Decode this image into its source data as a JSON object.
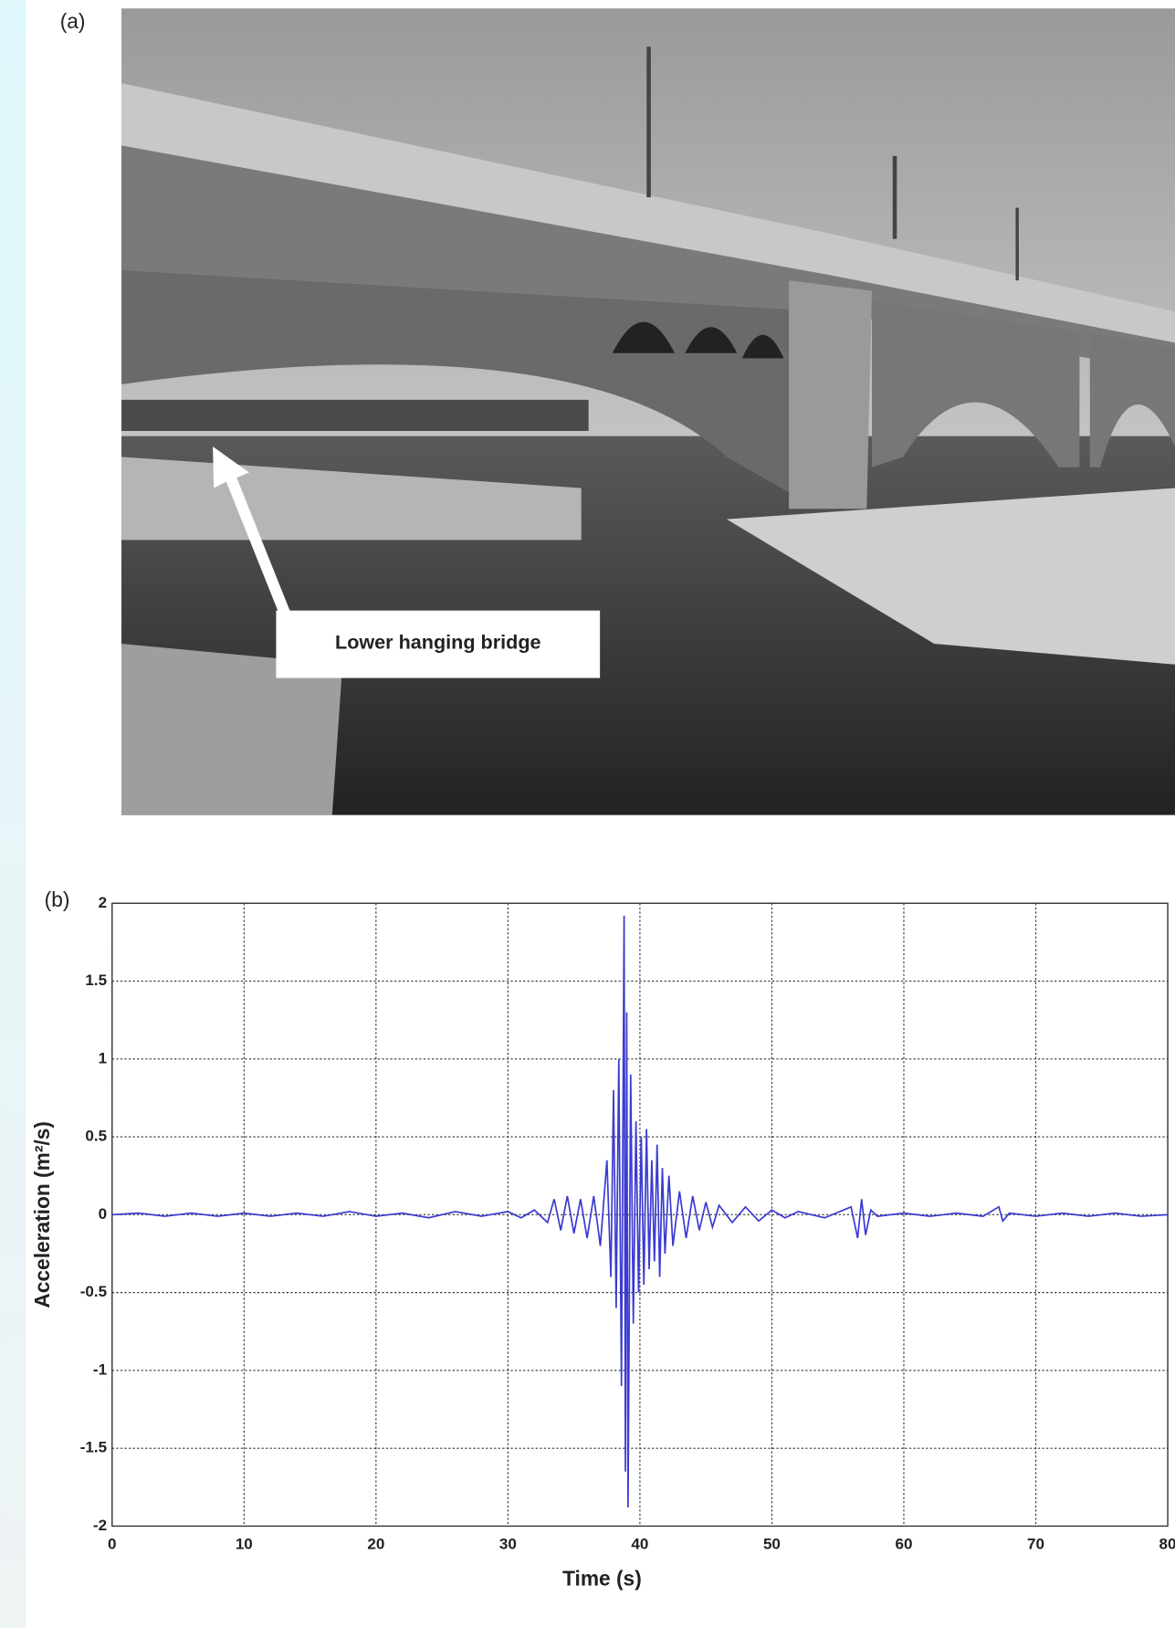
{
  "panel_a": {
    "label": "(a)",
    "annotation": "Lower hanging bridge"
  },
  "chart_data": {
    "type": "line",
    "panel_label": "(b)",
    "x_label": "Time (s)",
    "y_label": "Acceleration (m²/s)",
    "x": [
      0,
      2,
      4,
      6,
      8,
      10,
      12,
      14,
      16,
      18,
      20,
      22,
      24,
      26,
      28,
      30,
      31,
      32,
      33,
      33.5,
      34,
      34.5,
      35,
      35.5,
      36,
      36.5,
      37,
      37.5,
      37.8,
      38,
      38.2,
      38.4,
      38.6,
      38.8,
      38.9,
      39.0,
      39.1,
      39.3,
      39.5,
      39.7,
      39.9,
      40.1,
      40.3,
      40.5,
      40.7,
      40.9,
      41.1,
      41.3,
      41.5,
      41.7,
      41.9,
      42.2,
      42.5,
      43,
      43.5,
      44,
      44.5,
      45,
      45.5,
      46,
      47,
      48,
      49,
      50,
      51,
      52,
      54,
      56,
      56.5,
      56.8,
      57.1,
      57.5,
      58,
      60,
      62,
      64,
      66,
      67.2,
      67.5,
      68,
      70,
      72,
      74,
      76,
      78,
      80
    ],
    "values": [
      0,
      0.01,
      -0.01,
      0.01,
      -0.01,
      0.01,
      -0.01,
      0.01,
      -0.01,
      0.02,
      -0.01,
      0.01,
      -0.02,
      0.02,
      -0.01,
      0.02,
      -0.02,
      0.03,
      -0.05,
      0.1,
      -0.1,
      0.12,
      -0.12,
      0.1,
      -0.15,
      0.12,
      -0.2,
      0.35,
      -0.4,
      0.8,
      -0.6,
      1.0,
      -1.1,
      1.92,
      -1.65,
      1.3,
      -1.88,
      0.9,
      -0.7,
      0.6,
      -0.5,
      0.5,
      -0.45,
      0.55,
      -0.35,
      0.35,
      -0.3,
      0.45,
      -0.4,
      0.3,
      -0.25,
      0.25,
      -0.2,
      0.15,
      -0.15,
      0.12,
      -0.1,
      0.08,
      -0.08,
      0.06,
      -0.05,
      0.05,
      -0.04,
      0.03,
      -0.02,
      0.02,
      -0.02,
      0.05,
      -0.15,
      0.1,
      -0.13,
      0.03,
      -0.01,
      0.01,
      -0.01,
      0.01,
      -0.01,
      0.05,
      -0.04,
      0.01,
      -0.01,
      0.01,
      -0.01,
      0.01,
      -0.01,
      0
    ],
    "color": "#3b3bd1",
    "xlim": [
      0,
      80
    ],
    "xticks": [
      0,
      10,
      20,
      30,
      40,
      50,
      60,
      70,
      80
    ],
    "ylim": [
      -2,
      2
    ],
    "yticks": [
      2,
      1.5,
      1,
      0.5,
      0,
      -0.5,
      -1,
      -1.5,
      -2
    ],
    "grid": true
  }
}
